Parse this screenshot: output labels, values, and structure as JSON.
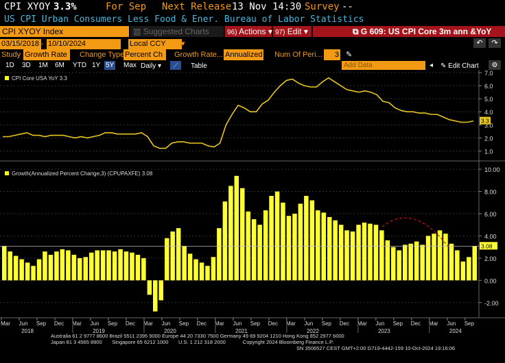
{
  "header": {
    "ticker": "CPI XYOY",
    "value": "3.3%",
    "period_label": "For Sep",
    "next_release_label": "Next Release",
    "next_release": "13 Nov 14:30",
    "survey_label": "Survey",
    "survey": "--",
    "description": "US CPI Urban Consumers Less Food & Ener. Bureau of Labor Statistics"
  },
  "toolbar": {
    "security": "CPI XYOY Index",
    "suggested": "Suggested Charts",
    "actions_num": "96)",
    "actions": "Actions",
    "edit_num": "97)",
    "edit": "Edit",
    "chart_title": "G 609: US CPI Core 3m ann &YoY"
  },
  "dates": {
    "start": "03/15/2018",
    "end": "10/10/2024",
    "currency": "Local CCY"
  },
  "study": {
    "study_label": "Study",
    "study_value": "Growth Rate",
    "change_type_label": "Change Type",
    "change_type_value": "Percent Ch",
    "growth_rate_label": "Growth Rate...",
    "growth_rate_value": "Annualized",
    "num_periods_label": "Num Of Peri...",
    "num_periods_value": "3"
  },
  "periods": {
    "items": [
      "1D",
      "3D",
      "1M",
      "6M",
      "YTD",
      "1Y",
      "5Y",
      "Max"
    ],
    "selected": "5Y",
    "freq": "Daily",
    "table": "Table",
    "add_data": "Add Data",
    "edit_chart": "Edit Chart"
  },
  "colors": {
    "accent": "#f29a14",
    "line": "#e8c81f",
    "bar": "#ffff33",
    "legend_swatch": "#ffff00",
    "bg": "#000000",
    "desc_text": "#49b8e0",
    "menu_red": "#a4141a"
  },
  "chart_data": [
    {
      "type": "line",
      "legend": "CPI Core USA YoY 3.3",
      "last_value": "3.3",
      "ylim": [
        0.5,
        7.0
      ],
      "yticks": [
        "7.0",
        "6.0",
        "5.0",
        "4.0",
        "3.0",
        "2.0",
        "1.0"
      ],
      "x": [
        "2018-03",
        "2018-04",
        "2018-05",
        "2018-06",
        "2018-07",
        "2018-08",
        "2018-09",
        "2018-10",
        "2018-11",
        "2018-12",
        "2019-01",
        "2019-02",
        "2019-03",
        "2019-04",
        "2019-05",
        "2019-06",
        "2019-07",
        "2019-08",
        "2019-09",
        "2019-10",
        "2019-11",
        "2019-12",
        "2020-01",
        "2020-02",
        "2020-03",
        "2020-04",
        "2020-05",
        "2020-06",
        "2020-07",
        "2020-08",
        "2020-09",
        "2020-10",
        "2020-11",
        "2020-12",
        "2021-01",
        "2021-02",
        "2021-03",
        "2021-04",
        "2021-05",
        "2021-06",
        "2021-07",
        "2021-08",
        "2021-09",
        "2021-10",
        "2021-11",
        "2021-12",
        "2022-01",
        "2022-02",
        "2022-03",
        "2022-04",
        "2022-05",
        "2022-06",
        "2022-07",
        "2022-08",
        "2022-09",
        "2022-10",
        "2022-11",
        "2022-12",
        "2023-01",
        "2023-02",
        "2023-03",
        "2023-04",
        "2023-05",
        "2023-06",
        "2023-07",
        "2023-08",
        "2023-09",
        "2023-10",
        "2023-11",
        "2023-12",
        "2024-01",
        "2024-02",
        "2024-03",
        "2024-04",
        "2024-05",
        "2024-06",
        "2024-07",
        "2024-08",
        "2024-09"
      ],
      "values": [
        2.1,
        2.1,
        2.2,
        2.3,
        2.4,
        2.2,
        2.2,
        2.1,
        2.2,
        2.2,
        2.2,
        2.1,
        2.0,
        2.1,
        2.0,
        2.1,
        2.2,
        2.4,
        2.4,
        2.3,
        2.3,
        2.3,
        2.3,
        2.4,
        2.1,
        1.4,
        1.2,
        1.2,
        1.6,
        1.7,
        1.7,
        1.6,
        1.6,
        1.6,
        1.4,
        1.3,
        1.6,
        3.0,
        3.8,
        4.5,
        4.3,
        4.0,
        4.0,
        4.6,
        4.9,
        5.5,
        6.0,
        6.4,
        6.5,
        6.2,
        6.0,
        5.9,
        5.9,
        6.3,
        6.6,
        6.3,
        6.0,
        5.7,
        5.6,
        5.5,
        5.6,
        5.5,
        5.3,
        4.8,
        4.7,
        4.3,
        4.1,
        4.0,
        4.0,
        3.9,
        3.9,
        3.8,
        3.8,
        3.6,
        3.4,
        3.3,
        3.2,
        3.2,
        3.3
      ]
    },
    {
      "type": "bar",
      "legend": "Growth(Annualized Percent Change,3) (CPUPAXFE) 3.08",
      "last_value": "3.08",
      "ylim": [
        -3,
        10.5
      ],
      "yticks": [
        "10.00",
        "8.00",
        "6.00",
        "4.00",
        "2.00",
        "0.00",
        "-2.00"
      ],
      "xlabels": [
        "Mar",
        "Jun",
        "Sep",
        "Dec",
        "Mar",
        "Jun",
        "Sep",
        "Dec",
        "Mar",
        "Jun",
        "Sep",
        "Dec",
        "Mar",
        "Jun",
        "Sep",
        "Dec",
        "Mar",
        "Jun",
        "Sep",
        "Dec",
        "Mar",
        "Jun",
        "Sep",
        "Dec",
        "Mar",
        "Jun",
        "Sep"
      ],
      "years": [
        "2018",
        "2019",
        "2020",
        "2021",
        "2022",
        "2023",
        "2024"
      ],
      "values": [
        3.1,
        2.6,
        2.2,
        1.9,
        1.6,
        1.3,
        1.9,
        2.6,
        2.3,
        2.6,
        2.8,
        2.7,
        2.3,
        2.0,
        2.1,
        2.5,
        2.7,
        2.7,
        2.7,
        2.6,
        2.8,
        2.6,
        2.5,
        2.3,
        2.0,
        -1.3,
        -2.8,
        -1.8,
        3.8,
        4.4,
        4.7,
        3.1,
        2.4,
        1.9,
        1.6,
        1.3,
        2.1,
        4.7,
        7.1,
        8.5,
        9.4,
        8.3,
        6.2,
        5.5,
        5.0,
        6.3,
        7.6,
        8.0,
        7.0,
        5.8,
        6.0,
        6.9,
        7.6,
        7.2,
        6.3,
        6.1,
        5.7,
        5.4,
        5.0,
        4.5,
        4.4,
        5.0,
        5.2,
        5.1,
        5.0,
        4.5,
        3.6,
        3.0,
        2.7,
        3.2,
        3.3,
        3.5,
        3.2,
        4.0,
        4.2,
        4.5,
        4.2,
        3.3,
        2.7,
        1.7,
        2.1,
        3.08
      ]
    }
  ],
  "footer": {
    "line1": "Australia 61 2 9777 8600 Brazil 5511 2395 9000 Europe 44 20 7330 7500 Germany 49 69 9204 1210 Hong Kong 852 2977 6000",
    "line2": "Japan 81 3 4565 8900       Singapore 65 6212 1000       U.S. 1 212 318 2000            Copyright 2024 Bloomberg Finance L.P.",
    "line3": "SN 3506527 CEST GMT+2:00 G719-4442-159 10-Oct-2024 19:16:06"
  }
}
